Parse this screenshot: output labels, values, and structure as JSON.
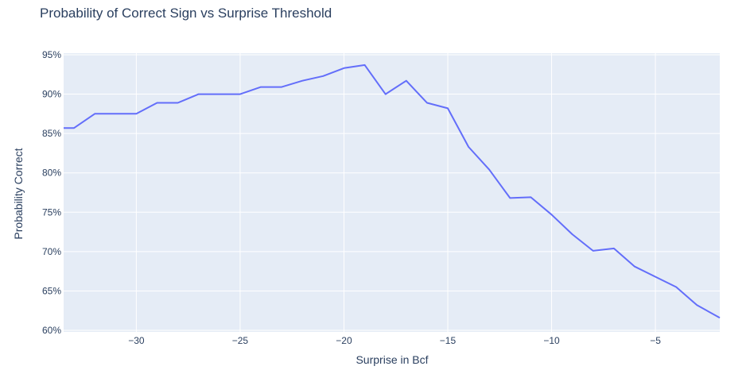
{
  "chart_data": {
    "type": "line",
    "title": "Probability of Correct Sign vs Surprise Threshold",
    "xlabel": "Surprise in Bcf",
    "ylabel": "Probability Correct",
    "xlim": [
      -33.5,
      -1.9
    ],
    "ylim": [
      0.598,
      0.952
    ],
    "x_ticks": [
      -30,
      -25,
      -20,
      -15,
      -10,
      -5
    ],
    "x_tick_labels": [
      "−30",
      "−25",
      "−20",
      "−15",
      "−10",
      "−5"
    ],
    "y_ticks": [
      0.6,
      0.65,
      0.7,
      0.75,
      0.8,
      0.85,
      0.9,
      0.95
    ],
    "y_tick_labels": [
      "60%",
      "65%",
      "70%",
      "75%",
      "80%",
      "85%",
      "90%",
      "95%"
    ],
    "grid": true,
    "colors": {
      "line": "#636efa",
      "plot_bg": "#e5ecf6",
      "grid": "#ffffff",
      "text": "#2a3f5f"
    },
    "series": [
      {
        "x": [
          -33.5,
          -33,
          -32,
          -31,
          -30,
          -29,
          -28,
          -27,
          -26,
          -25,
          -24,
          -23,
          -22,
          -21,
          -20,
          -19,
          -18,
          -17,
          -16,
          -15,
          -14,
          -13,
          -12,
          -11,
          -10,
          -9,
          -8,
          -7,
          -6,
          -5,
          -4,
          -3,
          -1.9
        ],
        "values": [
          0.857,
          0.857,
          0.875,
          0.875,
          0.875,
          0.889,
          0.889,
          0.9,
          0.9,
          0.9,
          0.909,
          0.909,
          0.917,
          0.923,
          0.933,
          0.937,
          0.9,
          0.917,
          0.889,
          0.882,
          0.833,
          0.804,
          0.768,
          0.769,
          0.747,
          0.722,
          0.701,
          0.704,
          0.681,
          0.668,
          0.655,
          0.632,
          0.616
        ]
      }
    ]
  }
}
